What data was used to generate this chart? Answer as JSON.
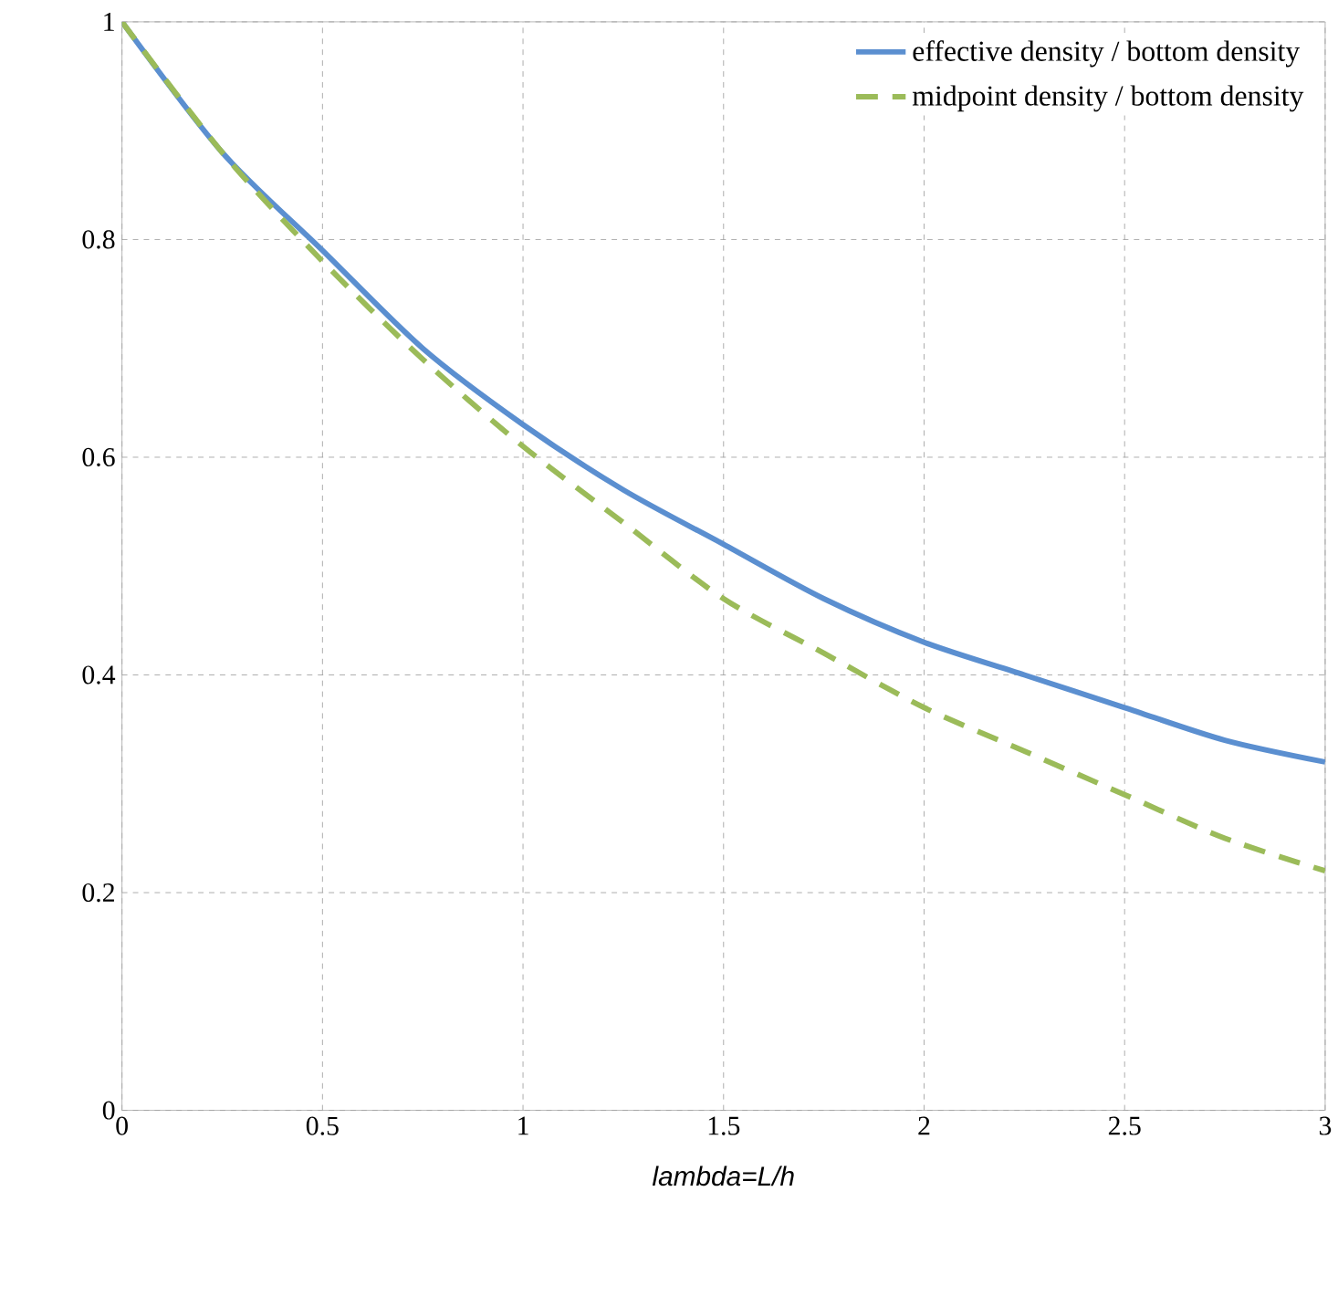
{
  "chart_data": {
    "type": "line",
    "xlabel": "*lambda=L/h*",
    "x": [
      0,
      0.25,
      0.5,
      0.75,
      1,
      1.25,
      1.5,
      1.75,
      2,
      2.25,
      2.5,
      2.75,
      3
    ],
    "series": [
      {
        "name": "effective density / bottom density",
        "color": "#5b8fd0",
        "line_style": "solid",
        "values": [
          1,
          0.88,
          0.79,
          0.7,
          0.63,
          0.57,
          0.52,
          0.47,
          0.43,
          0.4,
          0.37,
          0.34,
          0.32
        ]
      },
      {
        "name": "midpoint density / bottom density",
        "color": "#9bbb59",
        "line_style": "dashed",
        "values": [
          1,
          0.88,
          0.78,
          0.69,
          0.61,
          0.54,
          0.47,
          0.42,
          0.37,
          0.33,
          0.29,
          0.25,
          0.22
        ]
      }
    ],
    "xlim": [
      0,
      3
    ],
    "ylim": [
      0,
      1
    ],
    "xticks": [
      0,
      0.5,
      1,
      1.5,
      2,
      2.5,
      3
    ],
    "yticks": [
      0,
      0.2,
      0.4,
      0.6,
      0.8,
      1
    ],
    "grid": true,
    "legend": "top right",
    "marker": "none"
  }
}
